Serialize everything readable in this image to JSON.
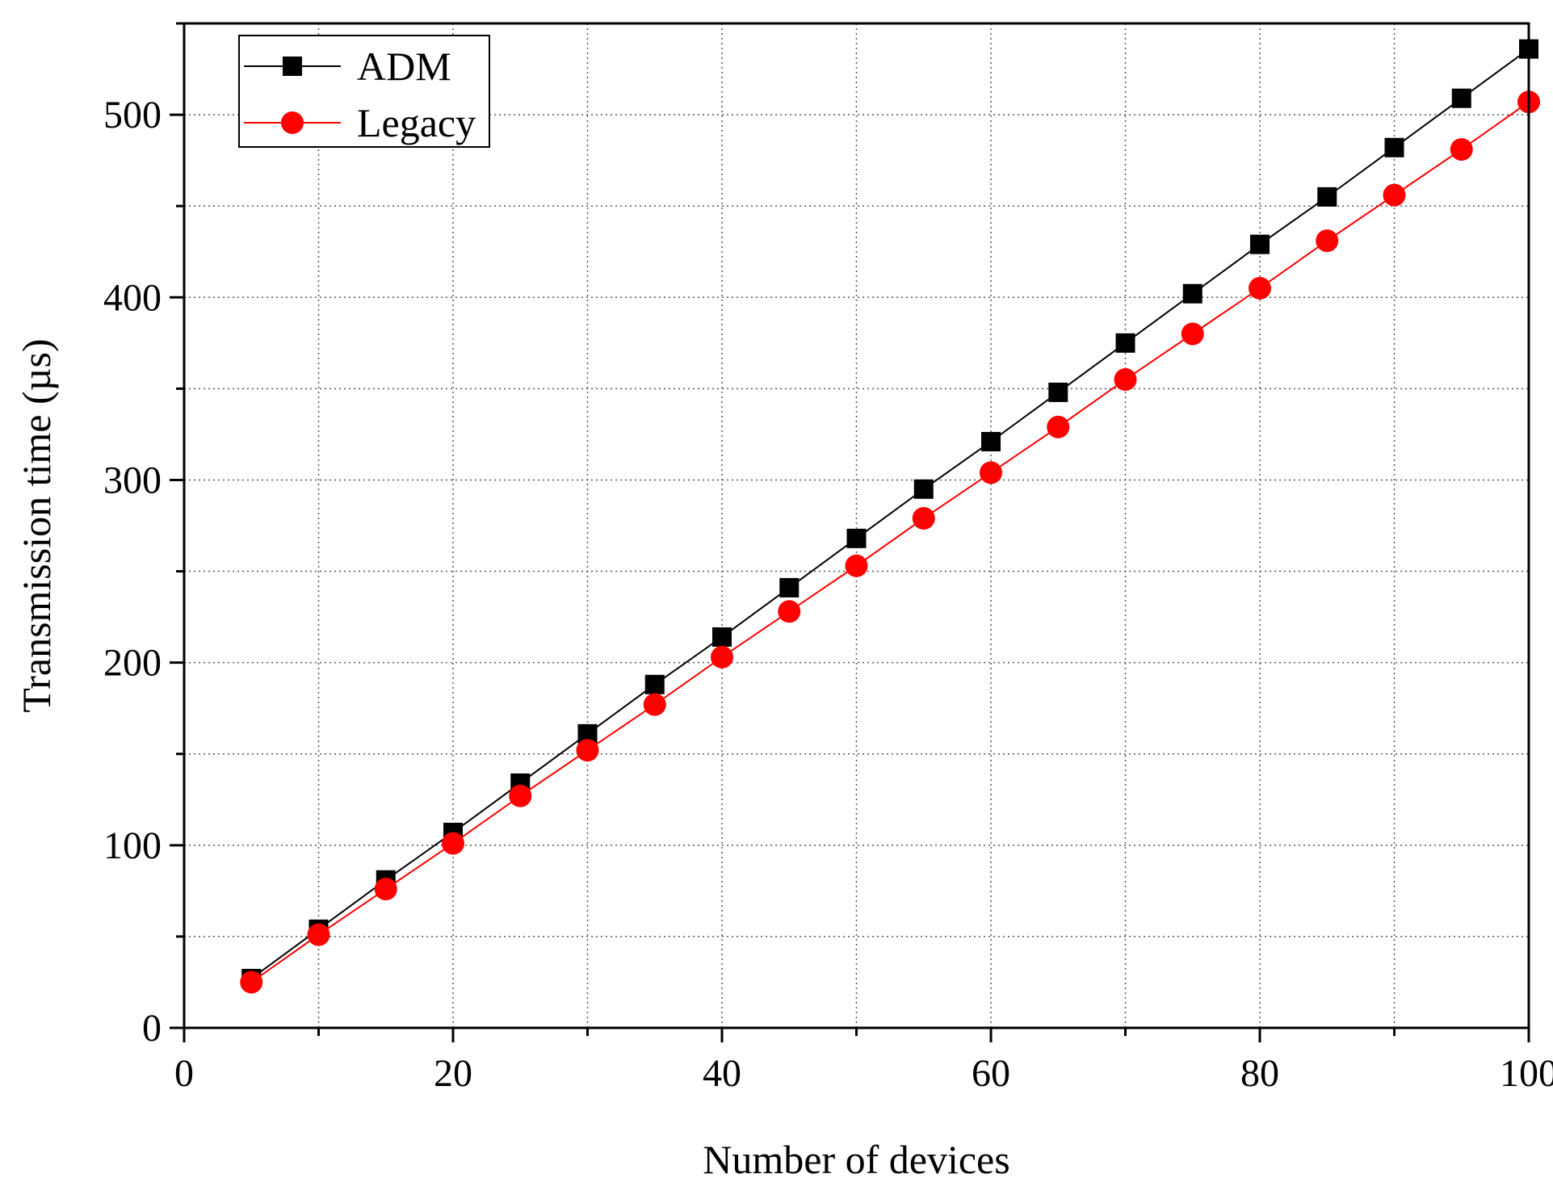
{
  "chart_data": {
    "type": "line",
    "xlabel": "Number of devices",
    "ylabel": "Transmission time (µs)",
    "xlim": [
      0,
      100
    ],
    "ylim": [
      0,
      550
    ],
    "xticks": [
      0,
      20,
      40,
      60,
      80,
      100
    ],
    "yticks": [
      0,
      100,
      200,
      300,
      400,
      500
    ],
    "grid": true,
    "legend_position": "top-left",
    "x": [
      5,
      10,
      15,
      20,
      25,
      30,
      35,
      40,
      45,
      50,
      55,
      60,
      65,
      70,
      75,
      80,
      85,
      90,
      95,
      100
    ],
    "series": [
      {
        "name": "ADM",
        "color": "#000000",
        "marker": "square",
        "values": [
          27,
          54,
          81,
          107,
          134,
          161,
          188,
          214,
          241,
          268,
          295,
          321,
          348,
          375,
          402,
          429,
          455,
          482,
          509,
          536
        ]
      },
      {
        "name": "Legacy",
        "color": "#ff0000",
        "marker": "circle",
        "values": [
          25,
          51,
          76,
          101,
          127,
          152,
          177,
          203,
          228,
          253,
          279,
          304,
          329,
          355,
          380,
          405,
          431,
          456,
          481,
          507
        ]
      }
    ]
  }
}
